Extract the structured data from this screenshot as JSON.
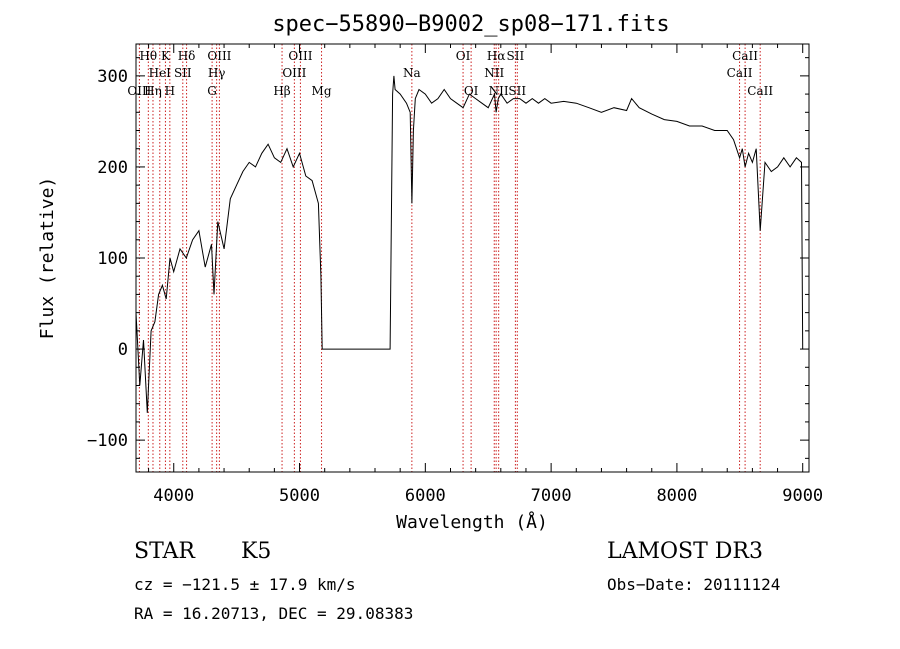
{
  "chart_data": {
    "type": "line",
    "title": "spec−55890−B9002_sp08−171.fits",
    "xlabel": "Wavelength (Å)",
    "ylabel": "Flux (relative)",
    "xlim": [
      3700,
      9050
    ],
    "ylim": [
      -135,
      335
    ],
    "xticks": [
      4000,
      5000,
      6000,
      7000,
      8000,
      9000
    ],
    "yticks": [
      -100,
      0,
      100,
      200,
      300
    ],
    "xtick_labels": [
      "4000",
      "5000",
      "6000",
      "7000",
      "8000",
      "9000"
    ],
    "ytick_labels": [
      "−100",
      "0",
      "100",
      "200",
      "300"
    ],
    "grid": false,
    "series": [
      {
        "x": [
          3700,
          3730,
          3760,
          3790,
          3820,
          3850,
          3880,
          3910,
          3940,
          3970,
          4000,
          4050,
          4100,
          4150,
          4200,
          4250,
          4300,
          4320,
          4350,
          4400,
          4450,
          4500,
          4550,
          4600,
          4650,
          4700,
          4750,
          4800,
          4850,
          4900,
          4950,
          5000,
          5050,
          5100,
          5150,
          5170,
          5180,
          5200,
          5400,
          5600,
          5720,
          5740,
          5750,
          5760,
          5800,
          5850,
          5880,
          5893,
          5905,
          5920,
          5950,
          6000,
          6050,
          6100,
          6150,
          6200,
          6250,
          6300,
          6350,
          6400,
          6450,
          6500,
          6550,
          6563,
          6580,
          6600,
          6650,
          6700,
          6750,
          6800,
          6850,
          6900,
          6950,
          7000,
          7100,
          7200,
          7300,
          7400,
          7500,
          7600,
          7640,
          7700,
          7800,
          7900,
          8000,
          8100,
          8200,
          8300,
          8400,
          8450,
          8498,
          8520,
          8542,
          8570,
          8600,
          8630,
          8662,
          8700,
          8750,
          8800,
          8850,
          8900,
          8950,
          8990,
          9000
        ],
        "y": [
          40,
          -40,
          10,
          -70,
          20,
          30,
          60,
          70,
          55,
          100,
          85,
          110,
          100,
          120,
          130,
          90,
          115,
          60,
          140,
          110,
          165,
          180,
          195,
          205,
          200,
          215,
          225,
          210,
          205,
          220,
          200,
          215,
          190,
          185,
          160,
          80,
          0,
          0,
          0,
          0,
          0,
          280,
          300,
          285,
          280,
          270,
          260,
          160,
          240,
          275,
          285,
          280,
          270,
          275,
          285,
          275,
          270,
          265,
          280,
          275,
          270,
          265,
          280,
          260,
          275,
          280,
          270,
          275,
          275,
          270,
          275,
          270,
          275,
          270,
          272,
          270,
          265,
          260,
          265,
          262,
          275,
          265,
          258,
          252,
          250,
          245,
          245,
          240,
          240,
          230,
          210,
          220,
          200,
          215,
          205,
          220,
          130,
          205,
          195,
          200,
          210,
          200,
          210,
          205,
          0
        ],
        "name": ""
      }
    ],
    "line_labels": [
      {
        "label": "Hθ",
        "x": 3798,
        "row": 1
      },
      {
        "label": "OIII",
        "x": 3727,
        "row": 3
      },
      {
        "label": "Hη",
        "x": 3835,
        "row": 3
      },
      {
        "label": "HeI",
        "x": 3889,
        "row": 2
      },
      {
        "label": "K",
        "x": 3934,
        "row": 1
      },
      {
        "label": "H",
        "x": 3969,
        "row": 3
      },
      {
        "label": "SII",
        "x": 4072,
        "row": 2
      },
      {
        "label": "Hδ",
        "x": 4102,
        "row": 1
      },
      {
        "label": "G",
        "x": 4305,
        "row": 3
      },
      {
        "label": "OIII",
        "x": 4363,
        "row": 1
      },
      {
        "label": "Hγ",
        "x": 4341,
        "row": 2
      },
      {
        "label": "Hβ",
        "x": 4861,
        "row": 3
      },
      {
        "label": "OIII",
        "x": 4959,
        "row": 2
      },
      {
        "label": "OIII",
        "x": 5007,
        "row": 1
      },
      {
        "label": "Mg",
        "x": 5175,
        "row": 3
      },
      {
        "label": "Na",
        "x": 5893,
        "row": 2
      },
      {
        "label": "OI",
        "x": 6300,
        "row": 1
      },
      {
        "label": "OI",
        "x": 6364,
        "row": 3
      },
      {
        "label": "Hα",
        "x": 6563,
        "row": 1
      },
      {
        "label": "NII",
        "x": 6548,
        "row": 2
      },
      {
        "label": "NII",
        "x": 6583,
        "row": 3
      },
      {
        "label": "SII",
        "x": 6716,
        "row": 1
      },
      {
        "label": "SII",
        "x": 6731,
        "row": 3
      },
      {
        "label": "CaII",
        "x": 8498,
        "row": 2
      },
      {
        "label": "CaII",
        "x": 8542,
        "row": 1
      },
      {
        "label": "CaII",
        "x": 8662,
        "row": 3
      }
    ]
  },
  "info": {
    "class": "STAR",
    "subclass": "K5",
    "survey": "LAMOST DR3",
    "cz": "cz = −121.5 ± 17.9 km/s",
    "obs_date": "Obs−Date: 20111124",
    "coords": "RA =  16.20713, DEC =  29.08383"
  },
  "colors": {
    "line_markers": "#cc2222",
    "spectrum": "#000000"
  }
}
